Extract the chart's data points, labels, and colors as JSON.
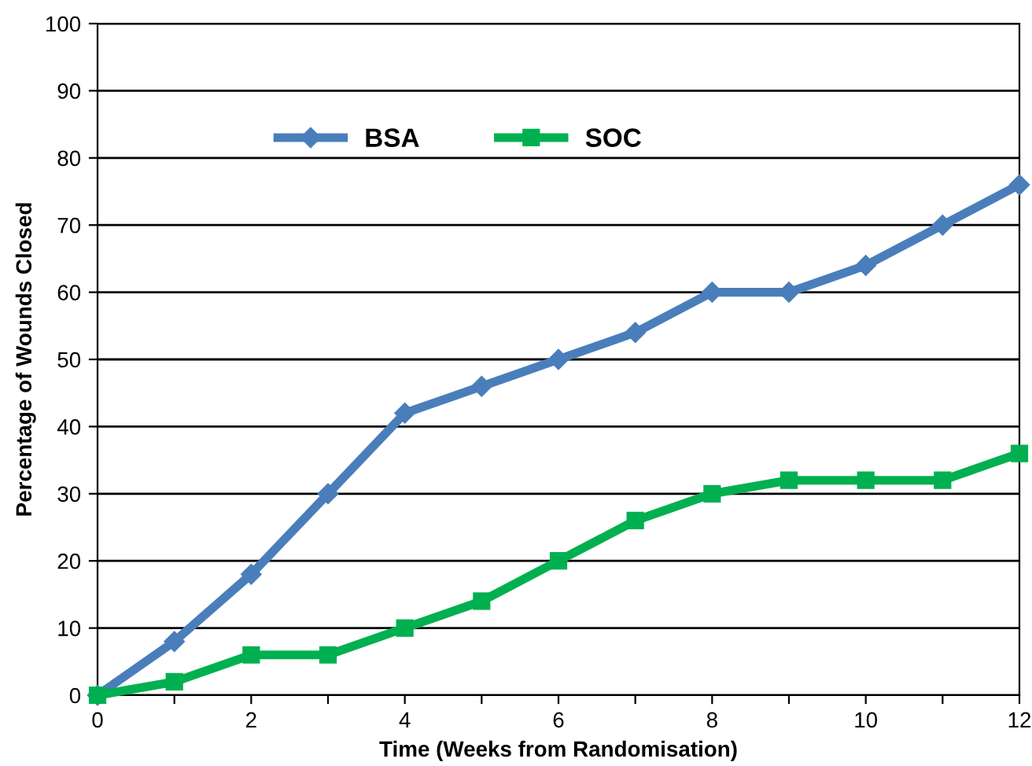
{
  "chart_data": {
    "type": "line",
    "xlabel": "Time (Weeks from Randomisation)",
    "ylabel": "Percentage of Wounds Closed",
    "x": [
      0,
      1,
      2,
      3,
      4,
      5,
      6,
      7,
      8,
      9,
      10,
      11,
      12
    ],
    "series": [
      {
        "name": "BSA",
        "color": "#4a7ebb",
        "marker": "diamond",
        "values": [
          0,
          8,
          18,
          30,
          42,
          46,
          50,
          54,
          60,
          60,
          64,
          70,
          76
        ]
      },
      {
        "name": "SOC",
        "color": "#00b050",
        "marker": "square",
        "values": [
          0,
          2,
          6,
          6,
          10,
          14,
          20,
          26,
          30,
          32,
          32,
          32,
          36
        ]
      }
    ],
    "xlim": [
      0,
      12
    ],
    "xticks": [
      0,
      {
        "value": 1,
        "label": null
      },
      2,
      {
        "value": 3,
        "label": null
      },
      4,
      {
        "value": 5,
        "label": null
      },
      6,
      {
        "value": 7,
        "label": null
      },
      8,
      {
        "value": 9,
        "label": null
      },
      10,
      {
        "value": 11,
        "label": null
      },
      12
    ],
    "ylim": [
      0,
      100
    ],
    "yticks": [
      0,
      10,
      20,
      30,
      40,
      50,
      60,
      70,
      80,
      90,
      100
    ],
    "grid": "y",
    "legend": "top left",
    "line_style": "solid"
  }
}
